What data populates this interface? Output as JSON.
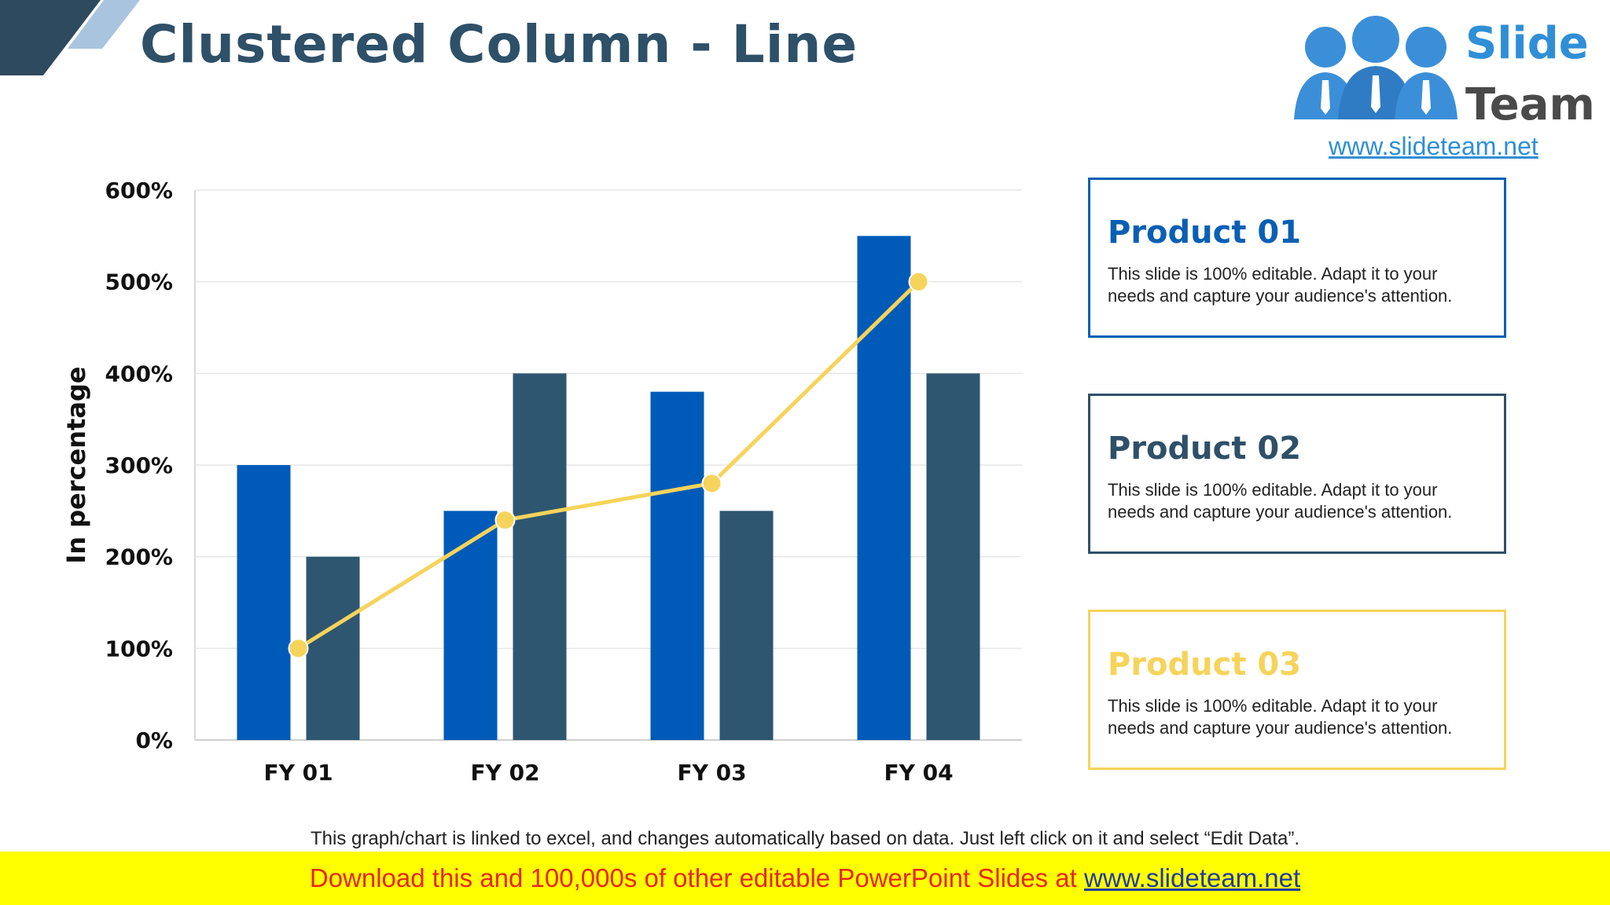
{
  "slide": {
    "title": "Clustered Column - Line",
    "note": "This graph/chart is linked to excel, and changes automatically based on data. Just left click on it and select “Edit Data”.",
    "banner_text": "Download this and 100,000s of other editable PowerPoint Slides at",
    "banner_link": "www.slideteam.net"
  },
  "logo": {
    "word1": "Slide",
    "word2": "Team",
    "url": "www.slideteam.net"
  },
  "cards": [
    {
      "title": "Product 01",
      "body": "This slide is 100% editable. Adapt it to your needs and capture your audience's attention.",
      "color": "#0a5fb4"
    },
    {
      "title": "Product 02",
      "body": "This slide is 100% editable. Adapt it to your needs and capture your audience's attention.",
      "color": "#2e5068"
    },
    {
      "title": "Product 03",
      "body": "This slide is 100% editable. Adapt it to your needs and capture your audience's attention.",
      "color": "#f6d35a"
    }
  ],
  "chart_data": {
    "type": "bar",
    "categories": [
      "FY 01",
      "FY 02",
      "FY 03",
      "FY 04"
    ],
    "series": [
      {
        "values": [
          300,
          250,
          380,
          550
        ],
        "color": "#005bb8",
        "kind": "bar"
      },
      {
        "values": [
          200,
          400,
          250,
          400
        ],
        "color": "#2e5670",
        "kind": "bar"
      },
      {
        "values": [
          100,
          240,
          280,
          500
        ],
        "color": "#f6d35a",
        "kind": "line"
      }
    ],
    "ylabel": "In percentage",
    "yticks": [
      "0%",
      "100%",
      "200%",
      "300%",
      "400%",
      "500%",
      "600%"
    ],
    "ylim": [
      0,
      600
    ],
    "grid": true
  }
}
